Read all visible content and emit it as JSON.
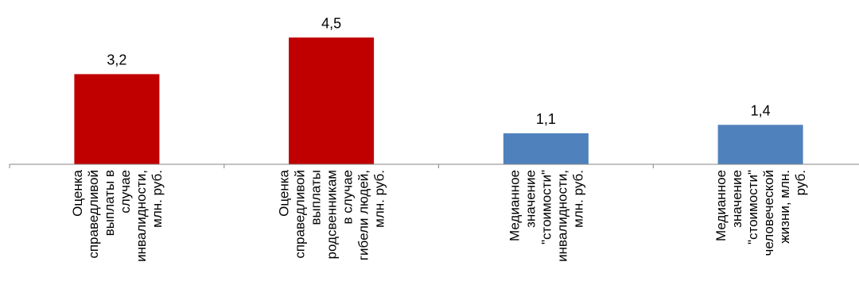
{
  "chart_data": {
    "type": "bar",
    "categories": [
      [
        "Оценка",
        "справедливой",
        "выплаты в",
        "случае",
        "инвалидности,",
        "млн. руб."
      ],
      [
        "Оценка",
        "справедливой",
        "выплаты",
        "родсвенникам",
        "в случае",
        "гибели людей,",
        "млн. руб."
      ],
      [
        "Медианное",
        "значение",
        "\"стоимости\"",
        "инвалидности,",
        "млн. руб."
      ],
      [
        "Медианное",
        "значение",
        "\"стоимости\"",
        "человеческой",
        "жизни, млн.",
        "руб."
      ]
    ],
    "values": [
      3.2,
      4.5,
      1.1,
      1.4
    ],
    "value_labels": [
      "3,2",
      "4,5",
      "1,1",
      "1,4"
    ],
    "bar_colors": [
      "#c00000",
      "#c00000",
      "#4f81bd",
      "#4f81bd"
    ],
    "ylim": [
      0,
      5
    ],
    "grid": false,
    "legend": "none",
    "axis_color": "#868686"
  }
}
